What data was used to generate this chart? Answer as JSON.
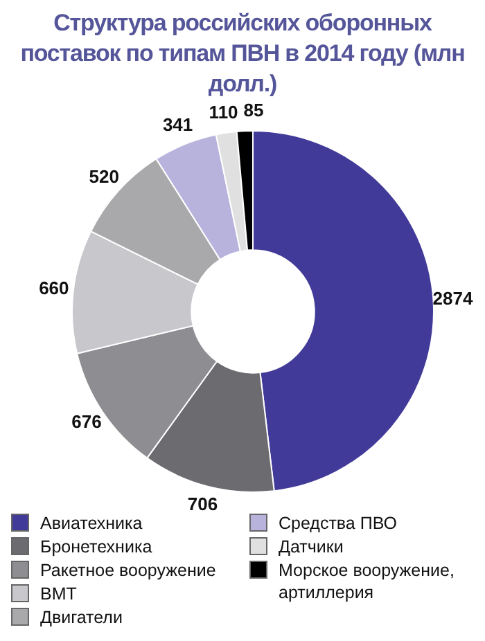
{
  "chart_data": {
    "type": "donut",
    "title": "Структура российских оборонных поставок по типам ПВН в 2014 году (млн долл.)",
    "categories": [
      "Авиатехника",
      "Бронетехника",
      "Ракетное вооружение",
      "ВМТ",
      "Двигатели",
      "Средства ПВО",
      "Датчики",
      "Морское вооружение, артиллерия"
    ],
    "values": [
      2874,
      706,
      676,
      660,
      520,
      341,
      110,
      85
    ],
    "colors": [
      "#413a98",
      "#6b6b70",
      "#8e8e92",
      "#c8c8cc",
      "#a9a9ac",
      "#b8b3dd",
      "#e0e0e0",
      "#000000"
    ],
    "data_labels": true,
    "legend": "bottom"
  }
}
